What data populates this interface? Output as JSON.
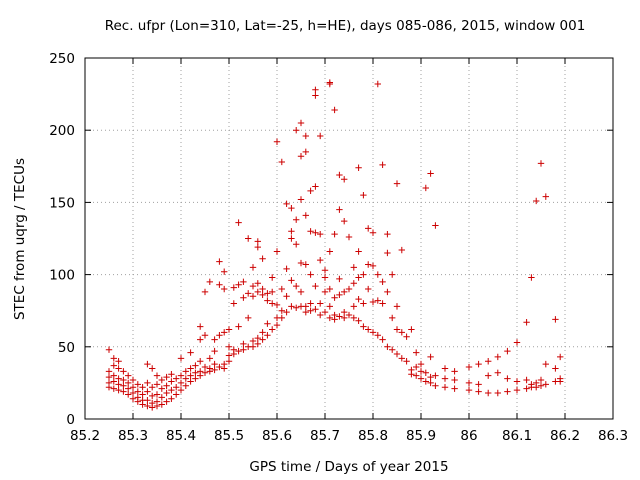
{
  "chart_data": {
    "type": "scatter",
    "title": "Rec. ufpr (Lon=310, Lat=-25, h=HE), days 085-086, 2015, window 001",
    "xlabel": "GPS time / Days of year 2015",
    "ylabel": "STEC from uqrg / TECUs",
    "xlim": [
      85.2,
      86.3
    ],
    "ylim": [
      0,
      250
    ],
    "grid": true,
    "xticks": [
      {
        "value": 85.2,
        "label": "85.2"
      },
      {
        "value": 85.3,
        "label": "85.3"
      },
      {
        "value": 85.4,
        "label": "85.4"
      },
      {
        "value": 85.5,
        "label": "85.5"
      },
      {
        "value": 85.6,
        "label": "85.6"
      },
      {
        "value": 85.7,
        "label": "85.7"
      },
      {
        "value": 85.8,
        "label": "85.8"
      },
      {
        "value": 85.9,
        "label": "85.9"
      },
      {
        "value": 86.0,
        "label": "86"
      },
      {
        "value": 86.1,
        "label": "86.1"
      },
      {
        "value": 86.2,
        "label": "86.2"
      },
      {
        "value": 86.3,
        "label": "86.3"
      }
    ],
    "yticks": [
      {
        "value": 0,
        "label": "0"
      },
      {
        "value": 50,
        "label": "50"
      },
      {
        "value": 100,
        "label": "100"
      },
      {
        "value": 150,
        "label": "150"
      },
      {
        "value": 200,
        "label": "200"
      },
      {
        "value": 250,
        "label": "250"
      }
    ],
    "marker_color": "#cc0000",
    "grid_color": "#a0a0a0",
    "points": [
      [
        85.25,
        48
      ],
      [
        85.25,
        33
      ],
      [
        85.25,
        29
      ],
      [
        85.25,
        25
      ],
      [
        85.25,
        22
      ],
      [
        85.26,
        42
      ],
      [
        85.26,
        37
      ],
      [
        85.26,
        30
      ],
      [
        85.26,
        26
      ],
      [
        85.26,
        21
      ],
      [
        85.27,
        40
      ],
      [
        85.27,
        35
      ],
      [
        85.27,
        28
      ],
      [
        85.27,
        24
      ],
      [
        85.27,
        20
      ],
      [
        85.28,
        33
      ],
      [
        85.28,
        27
      ],
      [
        85.28,
        23
      ],
      [
        85.28,
        19
      ],
      [
        85.29,
        30
      ],
      [
        85.29,
        25
      ],
      [
        85.29,
        21
      ],
      [
        85.29,
        17
      ],
      [
        85.3,
        27
      ],
      [
        85.3,
        22
      ],
      [
        85.3,
        18
      ],
      [
        85.3,
        14
      ],
      [
        85.31,
        24
      ],
      [
        85.31,
        19
      ],
      [
        85.31,
        15
      ],
      [
        85.31,
        12
      ],
      [
        85.32,
        22
      ],
      [
        85.32,
        17
      ],
      [
        85.32,
        13
      ],
      [
        85.32,
        10
      ],
      [
        85.33,
        38
      ],
      [
        85.33,
        25
      ],
      [
        85.33,
        19
      ],
      [
        85.33,
        13
      ],
      [
        85.33,
        9
      ],
      [
        85.34,
        35
      ],
      [
        85.34,
        22
      ],
      [
        85.34,
        16
      ],
      [
        85.34,
        11
      ],
      [
        85.34,
        8
      ],
      [
        85.35,
        30
      ],
      [
        85.35,
        24
      ],
      [
        85.35,
        17
      ],
      [
        85.35,
        12
      ],
      [
        85.35,
        9
      ],
      [
        85.36,
        27
      ],
      [
        85.36,
        21
      ],
      [
        85.36,
        15
      ],
      [
        85.36,
        10
      ],
      [
        85.37,
        29
      ],
      [
        85.37,
        23
      ],
      [
        85.37,
        18
      ],
      [
        85.37,
        12
      ],
      [
        85.38,
        31
      ],
      [
        85.38,
        26
      ],
      [
        85.38,
        20
      ],
      [
        85.38,
        14
      ],
      [
        85.39,
        28
      ],
      [
        85.39,
        22
      ],
      [
        85.39,
        17
      ],
      [
        85.4,
        42
      ],
      [
        85.4,
        30
      ],
      [
        85.4,
        25
      ],
      [
        85.4,
        20
      ],
      [
        85.41,
        33
      ],
      [
        85.41,
        28
      ],
      [
        85.41,
        23
      ],
      [
        85.42,
        46
      ],
      [
        85.42,
        35
      ],
      [
        85.42,
        30
      ],
      [
        85.42,
        26
      ],
      [
        85.43,
        37
      ],
      [
        85.43,
        32
      ],
      [
        85.43,
        28
      ],
      [
        85.44,
        64
      ],
      [
        85.44,
        55
      ],
      [
        85.44,
        40
      ],
      [
        85.44,
        33
      ],
      [
        85.44,
        30
      ],
      [
        85.45,
        88
      ],
      [
        85.45,
        58
      ],
      [
        85.45,
        36
      ],
      [
        85.45,
        32
      ],
      [
        85.46,
        95
      ],
      [
        85.46,
        42
      ],
      [
        85.46,
        35
      ],
      [
        85.46,
        33
      ],
      [
        85.47,
        55
      ],
      [
        85.47,
        47
      ],
      [
        85.47,
        38
      ],
      [
        85.47,
        34
      ],
      [
        85.48,
        109
      ],
      [
        85.48,
        93
      ],
      [
        85.48,
        58
      ],
      [
        85.48,
        36
      ],
      [
        85.49,
        102
      ],
      [
        85.49,
        90
      ],
      [
        85.49,
        60
      ],
      [
        85.49,
        38
      ],
      [
        85.49,
        35
      ],
      [
        85.5,
        62
      ],
      [
        85.5,
        50
      ],
      [
        85.5,
        44
      ],
      [
        85.5,
        40
      ],
      [
        85.51,
        91
      ],
      [
        85.51,
        80
      ],
      [
        85.51,
        48
      ],
      [
        85.51,
        45
      ],
      [
        85.52,
        136
      ],
      [
        85.52,
        93
      ],
      [
        85.52,
        64
      ],
      [
        85.52,
        47
      ],
      [
        85.53,
        95
      ],
      [
        85.53,
        84
      ],
      [
        85.53,
        52
      ],
      [
        85.53,
        48
      ],
      [
        85.54,
        125
      ],
      [
        85.54,
        87
      ],
      [
        85.54,
        70
      ],
      [
        85.54,
        50
      ],
      [
        85.55,
        105
      ],
      [
        85.55,
        92
      ],
      [
        85.55,
        85
      ],
      [
        85.55,
        54
      ],
      [
        85.55,
        50
      ],
      [
        85.56,
        123
      ],
      [
        85.56,
        119
      ],
      [
        85.56,
        94
      ],
      [
        85.56,
        88
      ],
      [
        85.56,
        56
      ],
      [
        85.56,
        52
      ],
      [
        85.57,
        111
      ],
      [
        85.57,
        90
      ],
      [
        85.57,
        86
      ],
      [
        85.57,
        60
      ],
      [
        85.57,
        55
      ],
      [
        85.58,
        87
      ],
      [
        85.58,
        82
      ],
      [
        85.58,
        66
      ],
      [
        85.58,
        58
      ],
      [
        85.59,
        98
      ],
      [
        85.59,
        88
      ],
      [
        85.59,
        80
      ],
      [
        85.59,
        62
      ],
      [
        85.6,
        192
      ],
      [
        85.6,
        116
      ],
      [
        85.6,
        79
      ],
      [
        85.6,
        70
      ],
      [
        85.6,
        65
      ],
      [
        85.61,
        178
      ],
      [
        85.61,
        90
      ],
      [
        85.61,
        75
      ],
      [
        85.61,
        70
      ],
      [
        85.62,
        149
      ],
      [
        85.62,
        104
      ],
      [
        85.62,
        85
      ],
      [
        85.62,
        74
      ],
      [
        85.63,
        146
      ],
      [
        85.63,
        130
      ],
      [
        85.63,
        125
      ],
      [
        85.63,
        96
      ],
      [
        85.63,
        78
      ],
      [
        85.64,
        200
      ],
      [
        85.64,
        138
      ],
      [
        85.64,
        121
      ],
      [
        85.64,
        92
      ],
      [
        85.64,
        77
      ],
      [
        85.65,
        182
      ],
      [
        85.65,
        205
      ],
      [
        85.65,
        152
      ],
      [
        85.65,
        108
      ],
      [
        85.65,
        88
      ],
      [
        85.65,
        78
      ],
      [
        85.66,
        196
      ],
      [
        85.66,
        185
      ],
      [
        85.66,
        141
      ],
      [
        85.66,
        107
      ],
      [
        85.66,
        78
      ],
      [
        85.66,
        74
      ],
      [
        85.67,
        158
      ],
      [
        85.67,
        130
      ],
      [
        85.67,
        100
      ],
      [
        85.67,
        80
      ],
      [
        85.67,
        75
      ],
      [
        85.68,
        224
      ],
      [
        85.68,
        228
      ],
      [
        85.68,
        161
      ],
      [
        85.68,
        129
      ],
      [
        85.68,
        92
      ],
      [
        85.68,
        76
      ],
      [
        85.69,
        196
      ],
      [
        85.69,
        128
      ],
      [
        85.69,
        110
      ],
      [
        85.69,
        80
      ],
      [
        85.69,
        72
      ],
      [
        85.7,
        103
      ],
      [
        85.7,
        98
      ],
      [
        85.7,
        88
      ],
      [
        85.7,
        74
      ],
      [
        85.71,
        233
      ],
      [
        85.71,
        232
      ],
      [
        85.71,
        116
      ],
      [
        85.71,
        90
      ],
      [
        85.71,
        78
      ],
      [
        85.71,
        70
      ],
      [
        85.72,
        214
      ],
      [
        85.72,
        128
      ],
      [
        85.72,
        84
      ],
      [
        85.72,
        72
      ],
      [
        85.72,
        69
      ],
      [
        85.73,
        169
      ],
      [
        85.73,
        145
      ],
      [
        85.73,
        97
      ],
      [
        85.73,
        86
      ],
      [
        85.73,
        71
      ],
      [
        85.74,
        166
      ],
      [
        85.74,
        137
      ],
      [
        85.74,
        88
      ],
      [
        85.74,
        74
      ],
      [
        85.74,
        70
      ],
      [
        85.75,
        126
      ],
      [
        85.75,
        90
      ],
      [
        85.75,
        72
      ],
      [
        85.76,
        105
      ],
      [
        85.76,
        94
      ],
      [
        85.76,
        78
      ],
      [
        85.76,
        70
      ],
      [
        85.77,
        174
      ],
      [
        85.77,
        116
      ],
      [
        85.77,
        98
      ],
      [
        85.77,
        83
      ],
      [
        85.77,
        68
      ],
      [
        85.78,
        155
      ],
      [
        85.78,
        100
      ],
      [
        85.78,
        80
      ],
      [
        85.78,
        64
      ],
      [
        85.79,
        132
      ],
      [
        85.79,
        107
      ],
      [
        85.79,
        90
      ],
      [
        85.79,
        62
      ],
      [
        85.8,
        129
      ],
      [
        85.8,
        106
      ],
      [
        85.8,
        81
      ],
      [
        85.8,
        60
      ],
      [
        85.81,
        232
      ],
      [
        85.81,
        100
      ],
      [
        85.81,
        82
      ],
      [
        85.81,
        58
      ],
      [
        85.82,
        176
      ],
      [
        85.82,
        95
      ],
      [
        85.82,
        80
      ],
      [
        85.82,
        55
      ],
      [
        85.83,
        128
      ],
      [
        85.83,
        115
      ],
      [
        85.83,
        88
      ],
      [
        85.83,
        50
      ],
      [
        85.84,
        100
      ],
      [
        85.84,
        70
      ],
      [
        85.84,
        48
      ],
      [
        85.85,
        163
      ],
      [
        85.85,
        78
      ],
      [
        85.85,
        62
      ],
      [
        85.85,
        45
      ],
      [
        85.86,
        117
      ],
      [
        85.86,
        60
      ],
      [
        85.86,
        42
      ],
      [
        85.87,
        57
      ],
      [
        85.87,
        40
      ],
      [
        85.88,
        62
      ],
      [
        85.88,
        34
      ],
      [
        85.88,
        31
      ],
      [
        85.89,
        46
      ],
      [
        85.89,
        36
      ],
      [
        85.89,
        30
      ],
      [
        85.9,
        38
      ],
      [
        85.9,
        33
      ],
      [
        85.9,
        28
      ],
      [
        85.91,
        160
      ],
      [
        85.91,
        32
      ],
      [
        85.91,
        26
      ],
      [
        85.92,
        170
      ],
      [
        85.92,
        43
      ],
      [
        85.92,
        29
      ],
      [
        85.92,
        25
      ],
      [
        85.93,
        134
      ],
      [
        85.93,
        30
      ],
      [
        85.93,
        23
      ],
      [
        85.95,
        35
      ],
      [
        85.95,
        28
      ],
      [
        85.95,
        22
      ],
      [
        85.97,
        33
      ],
      [
        85.97,
        27
      ],
      [
        85.97,
        21
      ],
      [
        86.0,
        36
      ],
      [
        86.0,
        25
      ],
      [
        86.0,
        20
      ],
      [
        86.02,
        38
      ],
      [
        86.02,
        24
      ],
      [
        86.02,
        19
      ],
      [
        86.04,
        40
      ],
      [
        86.04,
        30
      ],
      [
        86.04,
        18
      ],
      [
        86.06,
        43
      ],
      [
        86.06,
        32
      ],
      [
        86.06,
        18
      ],
      [
        86.08,
        47
      ],
      [
        86.08,
        28
      ],
      [
        86.08,
        19
      ],
      [
        86.1,
        53
      ],
      [
        86.1,
        26
      ],
      [
        86.1,
        20
      ],
      [
        86.12,
        67
      ],
      [
        86.12,
        27
      ],
      [
        86.12,
        21
      ],
      [
        86.13,
        98
      ],
      [
        86.13,
        24
      ],
      [
        86.13,
        22
      ],
      [
        86.14,
        151
      ],
      [
        86.14,
        25
      ],
      [
        86.14,
        22
      ],
      [
        86.15,
        177
      ],
      [
        86.15,
        27
      ],
      [
        86.15,
        23
      ],
      [
        86.16,
        154
      ],
      [
        86.16,
        38
      ],
      [
        86.16,
        24
      ],
      [
        86.18,
        69
      ],
      [
        86.18,
        35
      ],
      [
        86.18,
        26
      ],
      [
        86.19,
        43
      ],
      [
        86.19,
        28
      ],
      [
        86.19,
        26
      ]
    ]
  }
}
